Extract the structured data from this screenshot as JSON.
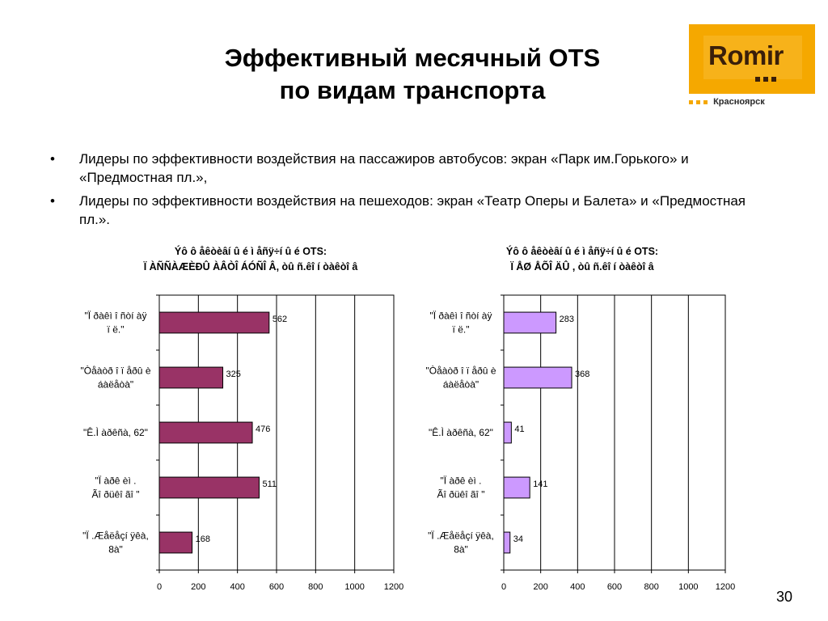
{
  "slide": {
    "title_line1": "Эффективный месячный OTS",
    "title_line2": "по видам транспорта",
    "page_number": "30"
  },
  "logo": {
    "wordmark": "Romir",
    "city": "Красноярск",
    "brand_color": "#f5a800"
  },
  "bullets": [
    {
      "marker": "•",
      "text": "Лидеры по эффективности воздействия на пассажиров автобусов: экран «Парк им.Горького» и «Предмостная пл.»,"
    },
    {
      "marker": "•",
      "text": "Лидеры по эффективности воздействия на пешеходов: экран «Театр Оперы и Балета» и «Предмостная пл.»."
    }
  ],
  "chart_data": [
    {
      "type": "bar",
      "orientation": "horizontal",
      "title_line1": "Ýô ô åêòèâí û é ì åñÿ÷í û é OTS:",
      "title_line2": "Ï ÀÑÑÀÆÈÐÛ  ÀÂÒÎ  ÁÓÑÎ  Â, òû ñ.êî í òàêòî â",
      "categories": [
        [
          "\"Ï ðàêì î ñòí àÿ",
          "ï ë.\""
        ],
        [
          "\"Òåàòð î ï åðû  è",
          "áàëåòà\""
        ],
        [
          "\"Ê.Ì  àðêñà, 62\""
        ],
        [
          "\"Ï àðê èì  .",
          "Ãî ðüêî ãî \""
        ],
        [
          "\"Ï .Æåëåçí ÿêà,",
          "8à\""
        ]
      ],
      "values": [
        562,
        325,
        476,
        511,
        168
      ],
      "xlim": [
        0,
        1200
      ],
      "xticks": [
        "0",
        "200",
        "400",
        "600",
        "800",
        "1000",
        "1200"
      ],
      "bar_color": "#993366",
      "grid": true
    },
    {
      "type": "bar",
      "orientation": "horizontal",
      "title_line1": "Ýô ô åêòèâí û é ì åñÿ÷í û é OTS:",
      "title_line2": "Ï ÅØ ÅÕÎ  ÄÛ , òû ñ.êî í òàêòî â",
      "categories": [
        [
          "\"Ï ðàêì î ñòí àÿ",
          "ï ë.\""
        ],
        [
          "\"Òåàòð î ï åðû  è",
          "áàëåòà\""
        ],
        [
          "\"Ê.Ì  àðêñà, 62\""
        ],
        [
          "\"Ï àðê èì  .",
          "Ãî ðüêî ãî \""
        ],
        [
          "\"Ï .Æåëåçí ÿêà,",
          "8à\""
        ]
      ],
      "values": [
        283,
        368,
        41,
        141,
        34
      ],
      "xlim": [
        0,
        1200
      ],
      "xticks": [
        "0",
        "200",
        "400",
        "600",
        "800",
        "1000",
        "1200"
      ],
      "bar_color": "#cc99ff",
      "grid": true
    }
  ]
}
